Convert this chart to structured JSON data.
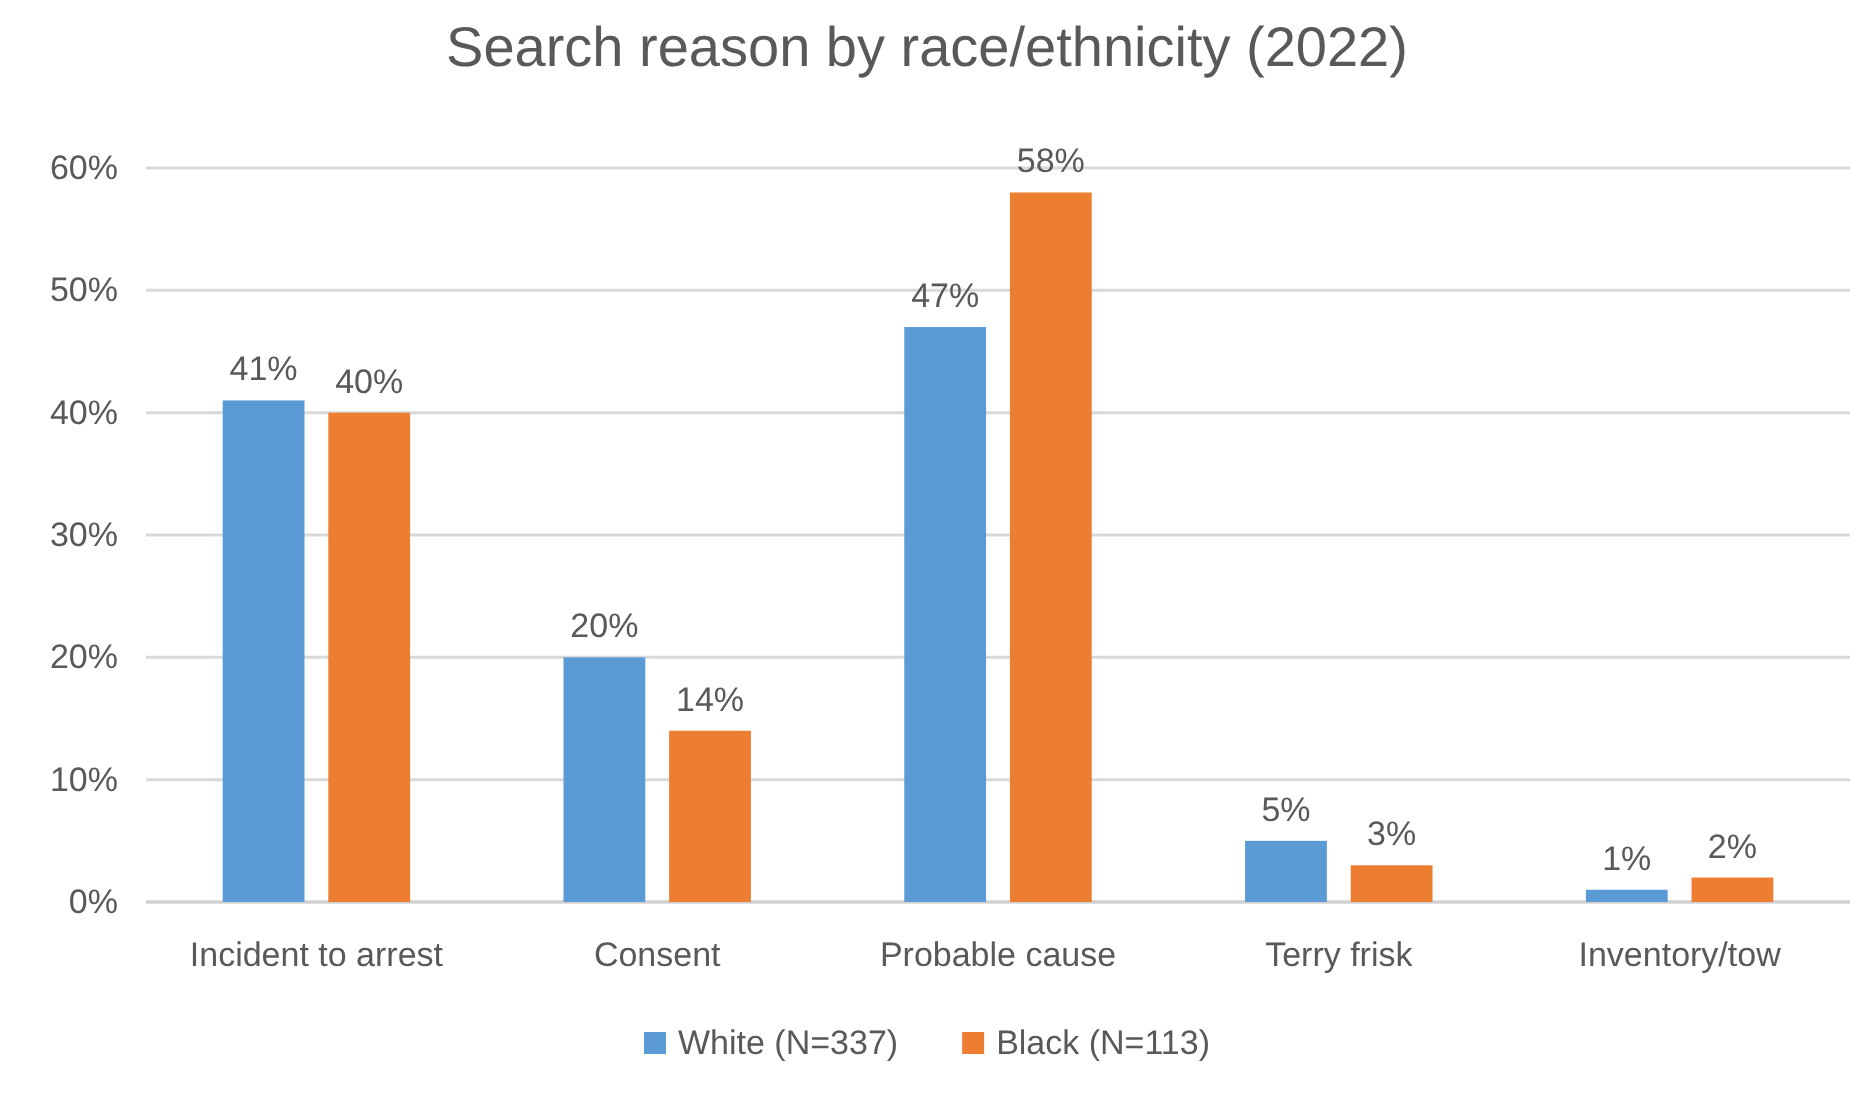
{
  "chart_data": {
    "type": "bar",
    "title": "Search reason by race/ethnicity (2022)",
    "categories": [
      "Incident to arrest",
      "Consent",
      "Probable cause",
      "Terry frisk",
      "Inventory/tow"
    ],
    "series": [
      {
        "name": "White (N=337)",
        "color": "#5b9bd5",
        "values": [
          41,
          20,
          47,
          5,
          1
        ],
        "value_labels": [
          "41%",
          "20%",
          "47%",
          "5%",
          "1%"
        ]
      },
      {
        "name": "Black (N=113)",
        "color": "#ed7d31",
        "values": [
          40,
          14,
          58,
          3,
          2
        ],
        "value_labels": [
          "40%",
          "14%",
          "58%",
          "3%",
          "2%"
        ]
      }
    ],
    "ylim": [
      0,
      60
    ],
    "yticks": [
      {
        "value": 0,
        "label": "0%"
      },
      {
        "value": 10,
        "label": "10%"
      },
      {
        "value": 20,
        "label": "20%"
      },
      {
        "value": 30,
        "label": "30%"
      },
      {
        "value": 40,
        "label": "40%"
      },
      {
        "value": 50,
        "label": "50%"
      },
      {
        "value": 60,
        "label": "60%"
      }
    ],
    "grid": "y",
    "legend": "bottom"
  }
}
